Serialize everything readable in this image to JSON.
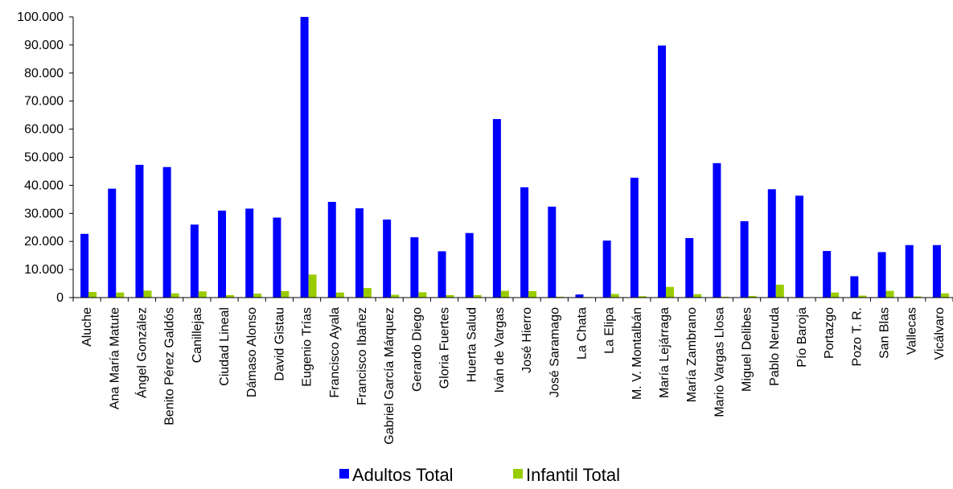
{
  "chart_data": {
    "type": "bar",
    "title": "",
    "xlabel": "",
    "ylabel": "",
    "ylim": [
      0,
      100000
    ],
    "yticks": [
      0,
      10000,
      20000,
      30000,
      40000,
      50000,
      60000,
      70000,
      80000,
      90000,
      100000
    ],
    "ytick_labels": [
      "0",
      "10.000",
      "20.000",
      "30.000",
      "40.000",
      "50.000",
      "60.000",
      "70.000",
      "80.000",
      "90.000",
      "100.000"
    ],
    "grid": false,
    "legend_position": "bottom",
    "categories": [
      "Aluche",
      "Ana María Matute",
      "Ángel González",
      "Benito Pérez Galdós",
      "Canillejas",
      "Ciudad Lineal",
      "Dámaso Alonso",
      "David Gistau",
      "Eugenio Trías",
      "Francisco Ayala",
      "Francisco Ibañez",
      "Gabriel García Márquez",
      "Gerardo Diego",
      "Gloria Fuertes",
      "Huerta Salud",
      "Iván de Vargas",
      "José Hierro",
      "José Saramago",
      "La Chata",
      "La Elipa",
      "M. V. Montalbán",
      "María Lejárraga",
      "María Zambrano",
      "Mario Vargas Llosa",
      "Miguel Delibes",
      "Pablo Neruda",
      "Pío Baroja",
      "Portazgo",
      "Pozo T. R.",
      "San Blas",
      "Vallecas",
      "Vicálvaro"
    ],
    "series": [
      {
        "name": "Adultos Total",
        "color": "#0000ff",
        "values": [
          22700,
          38800,
          47300,
          46500,
          26000,
          31000,
          31700,
          28500,
          100000,
          34100,
          31800,
          27800,
          21500,
          16500,
          23000,
          63600,
          39300,
          32400,
          1100,
          20300,
          42700,
          89800,
          21200,
          47900,
          27200,
          38600,
          36300,
          16600,
          7600,
          16200,
          18700,
          18700
        ]
      },
      {
        "name": "Infantil Total",
        "color": "#99cc00",
        "values": [
          2000,
          1800,
          2500,
          1500,
          2200,
          900,
          1400,
          2300,
          8200,
          1800,
          3400,
          1000,
          1900,
          900,
          900,
          2400,
          2300,
          300,
          200,
          1300,
          500,
          3800,
          1200,
          300,
          600,
          4600,
          100,
          1800,
          700,
          2400,
          400,
          1500
        ]
      }
    ]
  }
}
